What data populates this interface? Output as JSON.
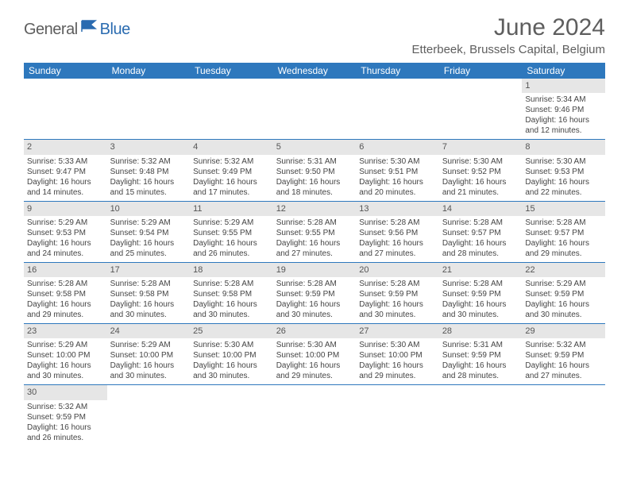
{
  "brand": {
    "part1": "General",
    "part2": "Blue"
  },
  "title": "June 2024",
  "location": "Etterbeek, Brussels Capital, Belgium",
  "theme": {
    "header_bg": "#2e78bd",
    "header_text": "#ffffff",
    "daynum_bg": "#e6e6e6",
    "border": "#2e78bd",
    "title_color": "#5e5e5e",
    "body_text": "#444444"
  },
  "day_headers": [
    "Sunday",
    "Monday",
    "Tuesday",
    "Wednesday",
    "Thursday",
    "Friday",
    "Saturday"
  ],
  "grid": [
    [
      null,
      null,
      null,
      null,
      null,
      null,
      {
        "n": "1",
        "sunrise": "5:34 AM",
        "sunset": "9:46 PM",
        "daylight": "16 hours and 12 minutes."
      }
    ],
    [
      {
        "n": "2",
        "sunrise": "5:33 AM",
        "sunset": "9:47 PM",
        "daylight": "16 hours and 14 minutes."
      },
      {
        "n": "3",
        "sunrise": "5:32 AM",
        "sunset": "9:48 PM",
        "daylight": "16 hours and 15 minutes."
      },
      {
        "n": "4",
        "sunrise": "5:32 AM",
        "sunset": "9:49 PM",
        "daylight": "16 hours and 17 minutes."
      },
      {
        "n": "5",
        "sunrise": "5:31 AM",
        "sunset": "9:50 PM",
        "daylight": "16 hours and 18 minutes."
      },
      {
        "n": "6",
        "sunrise": "5:30 AM",
        "sunset": "9:51 PM",
        "daylight": "16 hours and 20 minutes."
      },
      {
        "n": "7",
        "sunrise": "5:30 AM",
        "sunset": "9:52 PM",
        "daylight": "16 hours and 21 minutes."
      },
      {
        "n": "8",
        "sunrise": "5:30 AM",
        "sunset": "9:53 PM",
        "daylight": "16 hours and 22 minutes."
      }
    ],
    [
      {
        "n": "9",
        "sunrise": "5:29 AM",
        "sunset": "9:53 PM",
        "daylight": "16 hours and 24 minutes."
      },
      {
        "n": "10",
        "sunrise": "5:29 AM",
        "sunset": "9:54 PM",
        "daylight": "16 hours and 25 minutes."
      },
      {
        "n": "11",
        "sunrise": "5:29 AM",
        "sunset": "9:55 PM",
        "daylight": "16 hours and 26 minutes."
      },
      {
        "n": "12",
        "sunrise": "5:28 AM",
        "sunset": "9:55 PM",
        "daylight": "16 hours and 27 minutes."
      },
      {
        "n": "13",
        "sunrise": "5:28 AM",
        "sunset": "9:56 PM",
        "daylight": "16 hours and 27 minutes."
      },
      {
        "n": "14",
        "sunrise": "5:28 AM",
        "sunset": "9:57 PM",
        "daylight": "16 hours and 28 minutes."
      },
      {
        "n": "15",
        "sunrise": "5:28 AM",
        "sunset": "9:57 PM",
        "daylight": "16 hours and 29 minutes."
      }
    ],
    [
      {
        "n": "16",
        "sunrise": "5:28 AM",
        "sunset": "9:58 PM",
        "daylight": "16 hours and 29 minutes."
      },
      {
        "n": "17",
        "sunrise": "5:28 AM",
        "sunset": "9:58 PM",
        "daylight": "16 hours and 30 minutes."
      },
      {
        "n": "18",
        "sunrise": "5:28 AM",
        "sunset": "9:58 PM",
        "daylight": "16 hours and 30 minutes."
      },
      {
        "n": "19",
        "sunrise": "5:28 AM",
        "sunset": "9:59 PM",
        "daylight": "16 hours and 30 minutes."
      },
      {
        "n": "20",
        "sunrise": "5:28 AM",
        "sunset": "9:59 PM",
        "daylight": "16 hours and 30 minutes."
      },
      {
        "n": "21",
        "sunrise": "5:28 AM",
        "sunset": "9:59 PM",
        "daylight": "16 hours and 30 minutes."
      },
      {
        "n": "22",
        "sunrise": "5:29 AM",
        "sunset": "9:59 PM",
        "daylight": "16 hours and 30 minutes."
      }
    ],
    [
      {
        "n": "23",
        "sunrise": "5:29 AM",
        "sunset": "10:00 PM",
        "daylight": "16 hours and 30 minutes."
      },
      {
        "n": "24",
        "sunrise": "5:29 AM",
        "sunset": "10:00 PM",
        "daylight": "16 hours and 30 minutes."
      },
      {
        "n": "25",
        "sunrise": "5:30 AM",
        "sunset": "10:00 PM",
        "daylight": "16 hours and 30 minutes."
      },
      {
        "n": "26",
        "sunrise": "5:30 AM",
        "sunset": "10:00 PM",
        "daylight": "16 hours and 29 minutes."
      },
      {
        "n": "27",
        "sunrise": "5:30 AM",
        "sunset": "10:00 PM",
        "daylight": "16 hours and 29 minutes."
      },
      {
        "n": "28",
        "sunrise": "5:31 AM",
        "sunset": "9:59 PM",
        "daylight": "16 hours and 28 minutes."
      },
      {
        "n": "29",
        "sunrise": "5:32 AM",
        "sunset": "9:59 PM",
        "daylight": "16 hours and 27 minutes."
      }
    ],
    [
      {
        "n": "30",
        "sunrise": "5:32 AM",
        "sunset": "9:59 PM",
        "daylight": "16 hours and 26 minutes."
      },
      null,
      null,
      null,
      null,
      null,
      null
    ]
  ],
  "labels": {
    "sunrise": "Sunrise:",
    "sunset": "Sunset:",
    "daylight": "Daylight:"
  }
}
